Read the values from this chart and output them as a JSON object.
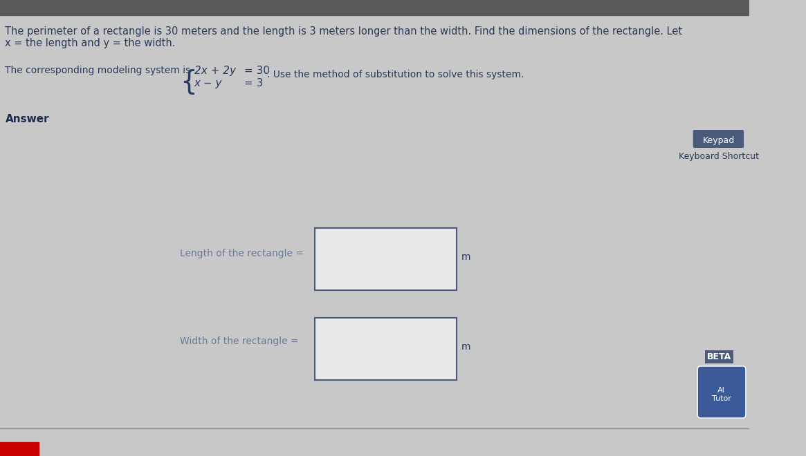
{
  "bg_color": "#c8c8c8",
  "top_bar_color": "#5a5a5a",
  "title_line1": "The perimeter of a rectangle is 30 meters and the length is 3 meters longer than the width. Find the dimensions of the rectangle. Let",
  "title_line2": "x = the length and y = the width.",
  "system_label": "The corresponding modeling system is",
  "eq1_left": "2x + 2y",
  "eq1_right": "= 30",
  "eq2_left": "x − y",
  "eq2_right": "= 3",
  "substitution_text": ". Use the method of substitution to solve this system.",
  "answer_label": "Answer",
  "length_label": "Length of the rectangle =",
  "width_label": "Width of the rectangle =",
  "unit": "m",
  "keypad_text": "Keypad",
  "keyboard_text": "Keyboard Shortcut",
  "beta_text": "BETA",
  "text_color": "#2a3a5a",
  "light_text_color": "#6a7a9a",
  "box_border_color": "#4a5a7a",
  "box_fill_color": "#e8e8e8",
  "keypad_icon_color": "#4a5a7a",
  "answer_label_color": "#1a2a4a"
}
